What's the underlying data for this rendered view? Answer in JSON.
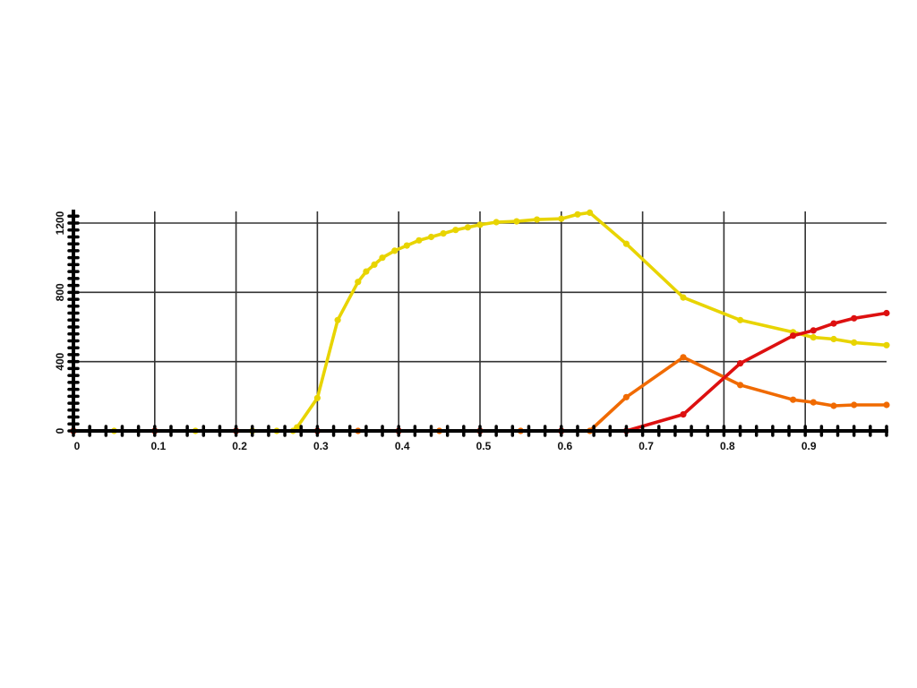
{
  "chart_data": {
    "type": "line",
    "title": "",
    "xlabel": "",
    "ylabel": "",
    "xlim": [
      0,
      1
    ],
    "ylim": [
      0,
      1200
    ],
    "x_ticks": [
      "0",
      "0.1",
      "0.2",
      "0.3",
      "0.4",
      "0.5",
      "0.6",
      "0.7",
      "0.8",
      "0.9"
    ],
    "y_ticks": [
      "0",
      "400",
      "800",
      "1200"
    ],
    "grid": true,
    "legend": "none",
    "series": [
      {
        "color": "#e8d400",
        "points": [
          [
            0.0,
            0
          ],
          [
            0.05,
            0
          ],
          [
            0.1,
            0
          ],
          [
            0.15,
            0
          ],
          [
            0.2,
            0
          ],
          [
            0.22,
            0
          ],
          [
            0.25,
            0
          ],
          [
            0.27,
            0
          ],
          [
            0.275,
            20
          ],
          [
            0.3,
            190
          ],
          [
            0.325,
            640
          ],
          [
            0.35,
            860
          ],
          [
            0.36,
            920
          ],
          [
            0.37,
            960
          ],
          [
            0.38,
            1000
          ],
          [
            0.395,
            1040
          ],
          [
            0.41,
            1070
          ],
          [
            0.425,
            1100
          ],
          [
            0.44,
            1120
          ],
          [
            0.455,
            1140
          ],
          [
            0.47,
            1160
          ],
          [
            0.485,
            1175
          ],
          [
            0.5,
            1190
          ],
          [
            0.52,
            1205
          ],
          [
            0.545,
            1210
          ],
          [
            0.57,
            1220
          ],
          [
            0.6,
            1225
          ],
          [
            0.62,
            1250
          ],
          [
            0.635,
            1260
          ],
          [
            0.68,
            1080
          ],
          [
            0.75,
            770
          ],
          [
            0.82,
            640
          ],
          [
            0.885,
            570
          ],
          [
            0.91,
            540
          ],
          [
            0.935,
            530
          ],
          [
            0.96,
            510
          ],
          [
            1.0,
            495
          ]
        ]
      },
      {
        "color": "#f06a00",
        "points": [
          [
            0.0,
            0
          ],
          [
            0.1,
            0
          ],
          [
            0.2,
            0
          ],
          [
            0.3,
            0
          ],
          [
            0.35,
            0
          ],
          [
            0.4,
            0
          ],
          [
            0.45,
            0
          ],
          [
            0.5,
            0
          ],
          [
            0.55,
            0
          ],
          [
            0.6,
            0
          ],
          [
            0.635,
            0
          ],
          [
            0.68,
            195
          ],
          [
            0.75,
            425
          ],
          [
            0.82,
            265
          ],
          [
            0.885,
            180
          ],
          [
            0.91,
            165
          ],
          [
            0.935,
            145
          ],
          [
            0.96,
            150
          ],
          [
            1.0,
            150
          ]
        ]
      },
      {
        "color": "#dd1010",
        "points": [
          [
            0.0,
            0
          ],
          [
            0.1,
            0
          ],
          [
            0.2,
            0
          ],
          [
            0.3,
            0
          ],
          [
            0.4,
            0
          ],
          [
            0.5,
            0
          ],
          [
            0.6,
            0
          ],
          [
            0.68,
            0
          ],
          [
            0.75,
            95
          ],
          [
            0.82,
            390
          ],
          [
            0.885,
            550
          ],
          [
            0.91,
            580
          ],
          [
            0.935,
            620
          ],
          [
            0.96,
            650
          ],
          [
            1.0,
            680
          ]
        ]
      }
    ]
  }
}
